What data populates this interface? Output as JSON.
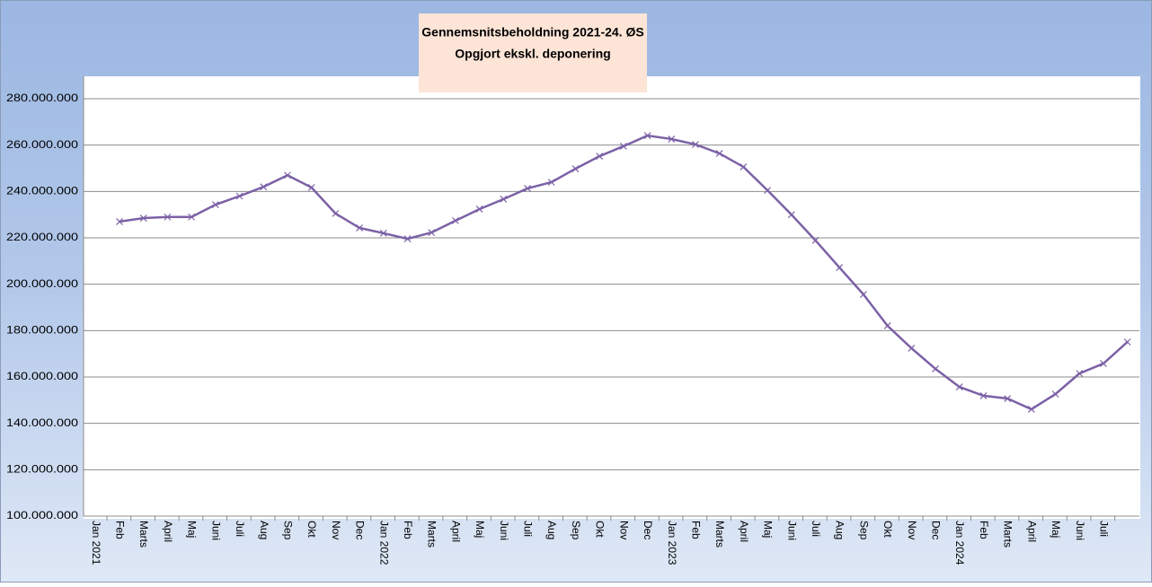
{
  "chart_data": {
    "type": "line",
    "title": [
      "Gennemsnitsbeholdning 2021-24. ØS",
      "Opgjort ekskl. deponering"
    ],
    "categories": [
      "Jan 2021",
      "Feb",
      "Marts",
      "April",
      "Maj",
      "Juni",
      "Juli",
      "Aug",
      "Sep",
      "Okt",
      "Nov",
      "Dec",
      "Jan 2022",
      "Feb",
      "Marts",
      "April",
      "Maj",
      "Juni",
      "Juli",
      "Aug",
      "Sep",
      "Okt",
      "Nov",
      "Dec",
      "Jan 2023",
      "Feb",
      "Marts",
      "April",
      "Maj",
      "Juni",
      "Juli",
      "Aug",
      "Sep",
      "Okt",
      "Nov",
      "Dec",
      "Jan 2024",
      "Feb",
      "Marts",
      "April",
      "Maj",
      "Juni",
      "Juli"
    ],
    "series": [
      {
        "color": "#7b61a6",
        "values": [
          227000000,
          228500000,
          229000000,
          229000000,
          234300000,
          238000000,
          242000000,
          247000000,
          241700000,
          230500000,
          224300000,
          222000000,
          219600000,
          222300000,
          227400000,
          232400000,
          236700000,
          241300000,
          244000000,
          249800000,
          255200000,
          259500000,
          264100000,
          262600000,
          260300000,
          256400000,
          250600000,
          240500000,
          230000000,
          218900000,
          207200000,
          195600000,
          182100000,
          172400000,
          163500000,
          155700000,
          151900000,
          150700000,
          146100000,
          152600000,
          161500000,
          165800000,
          175100000
        ]
      }
    ],
    "ylim": [
      100000000,
      280000000
    ],
    "yticks": [
      {
        "value": 100000000,
        "label": "100.000.000"
      },
      {
        "value": 120000000,
        "label": "120.000.000"
      },
      {
        "value": 140000000,
        "label": "140.000.000"
      },
      {
        "value": 160000000,
        "label": "160.000.000"
      },
      {
        "value": 180000000,
        "label": "180.000.000"
      },
      {
        "value": 200000000,
        "label": "200.000.000"
      },
      {
        "value": 220000000,
        "label": "220.000.000"
      },
      {
        "value": 240000000,
        "label": "240.000.000"
      },
      {
        "value": 260000000,
        "label": "260.000.000"
      },
      {
        "value": 280000000,
        "label": "280.000.000"
      }
    ],
    "grid": true
  }
}
